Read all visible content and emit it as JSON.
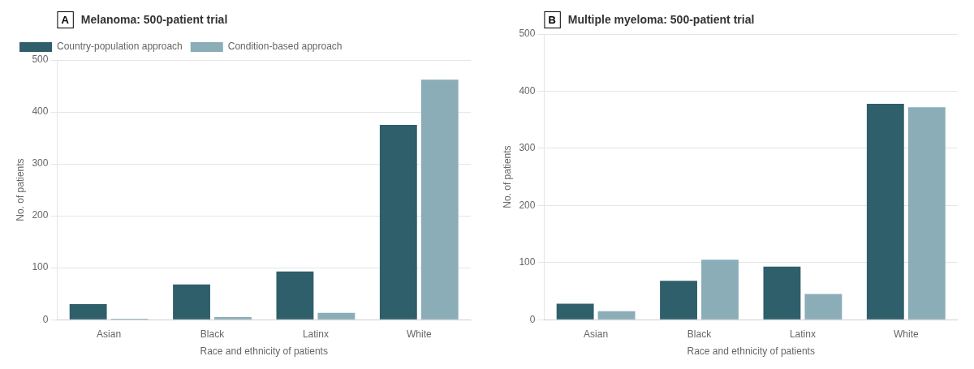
{
  "chart_data": [
    {
      "type": "bar",
      "title": "Melanoma: 500-patient trial",
      "annotations": [
        "A"
      ],
      "categories": [
        "Asian",
        "Black",
        "Latinx",
        "White"
      ],
      "series": [
        {
          "name": "Country-population approach",
          "color": "#2E5F6B",
          "values": [
            30,
            68,
            93,
            375
          ]
        },
        {
          "name": "Condition-based approach",
          "color": "#8AADB8",
          "values": [
            2,
            5,
            13,
            462
          ]
        }
      ],
      "xlabel": "Race and ethnicity of patients",
      "ylabel": "No. of patients",
      "ylim": [
        0,
        500
      ],
      "yticks": [
        0,
        100,
        200,
        300,
        400,
        500
      ],
      "grid": true,
      "legend": "upper left"
    },
    {
      "type": "bar",
      "title": "Multiple myeloma: 500-patient trial",
      "annotations": [
        "B"
      ],
      "categories": [
        "Asian",
        "Black",
        "Latinx",
        "White"
      ],
      "series": [
        {
          "name": "Country-population approach",
          "color": "#2E5F6B",
          "values": [
            28,
            68,
            93,
            378
          ]
        },
        {
          "name": "Condition-based approach",
          "color": "#8AADB8",
          "values": [
            15,
            105,
            45,
            372
          ]
        }
      ],
      "xlabel": "Race and ethnicity of patients",
      "ylabel": "No. of patients",
      "ylim": [
        0,
        500
      ],
      "yticks": [
        0,
        100,
        200,
        300,
        400,
        500
      ],
      "grid": true
    }
  ]
}
